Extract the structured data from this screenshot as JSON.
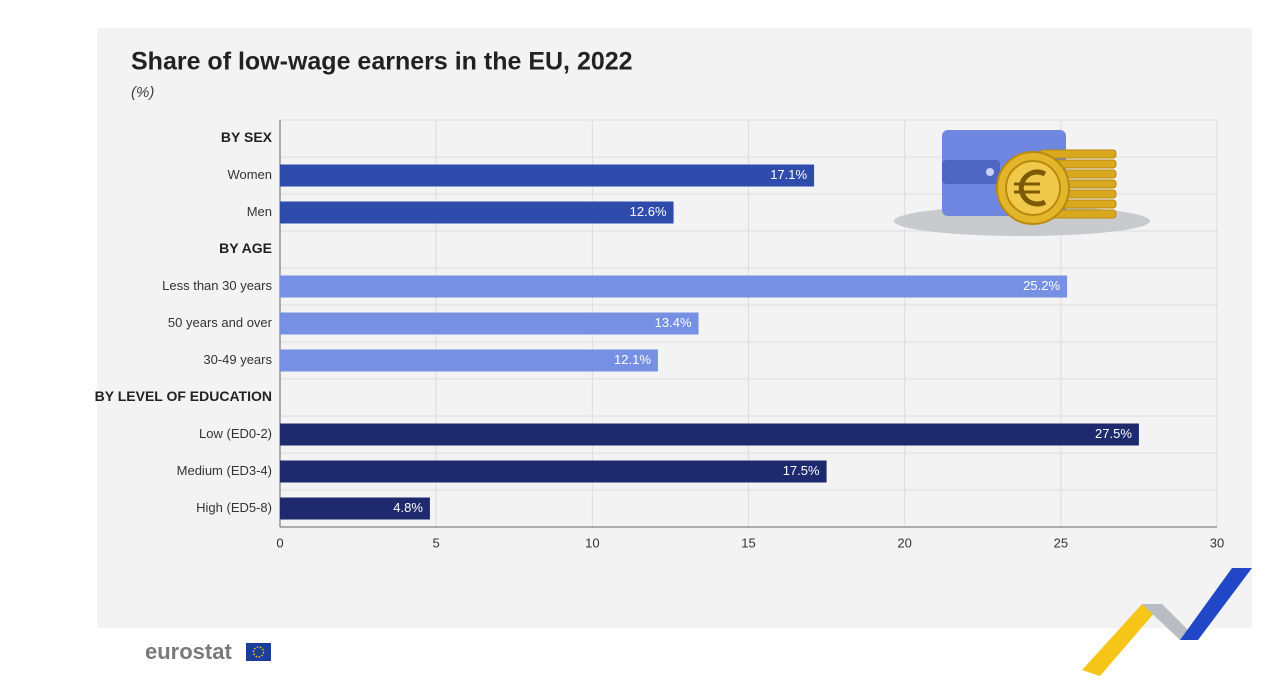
{
  "chart_data": {
    "type": "bar",
    "orientation": "horizontal",
    "title": "Share of low-wage earners in the EU, 2022",
    "subtitle": "(%)",
    "groups": [
      {
        "name": "BY SEX",
        "color": "#2f4bab",
        "categories": [
          "Women",
          "Men"
        ],
        "values": [
          17.1,
          12.6
        ],
        "value_labels": [
          "17.1%",
          "12.6%"
        ]
      },
      {
        "name": "BY AGE",
        "color": "#7690e4",
        "categories": [
          "Less than 30 years",
          "50 years and over",
          "30-49 years"
        ],
        "values": [
          25.2,
          13.4,
          12.1
        ],
        "value_labels": [
          "25.2%",
          "13.4%",
          "12.1%"
        ]
      },
      {
        "name": "BY LEVEL OF EDUCATION",
        "color": "#1f2a6e",
        "categories": [
          "Low (ED0-2)",
          "Medium (ED3-4)",
          "High (ED5-8)"
        ],
        "values": [
          27.5,
          17.5,
          4.8
        ],
        "value_labels": [
          "27.5%",
          "17.5%",
          "4.8%"
        ]
      }
    ],
    "xlim": [
      0,
      30
    ],
    "xticks": [
      0,
      5,
      10,
      15,
      20,
      25,
      30
    ],
    "grid": true
  },
  "footer": {
    "logo": "eurostat"
  }
}
